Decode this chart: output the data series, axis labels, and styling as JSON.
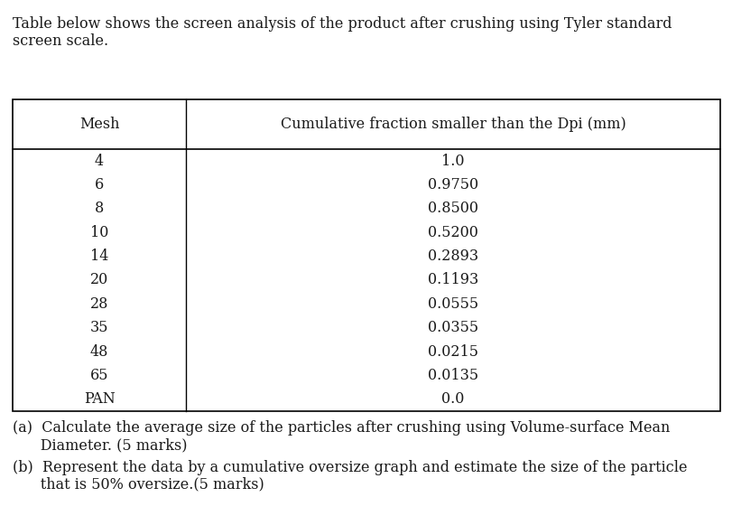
{
  "intro_text_line1": "Table below shows the screen analysis of the product after crushing using Tyler standard",
  "intro_text_line2": "screen scale.",
  "col1_header": "Mesh",
  "col2_header": "Cumulative fraction smaller than the Dpi (mm)",
  "mesh": [
    "4",
    "6",
    "8",
    "10",
    "14",
    "20",
    "28",
    "35",
    "48",
    "65",
    "PAN"
  ],
  "cumulative": [
    "1.0",
    "0.9750",
    "0.8500",
    "0.5200",
    "0.2893",
    "0.1193",
    "0.0555",
    "0.0355",
    "0.0215",
    "0.0135",
    "0.0"
  ],
  "footer_a_part1": "(a)  Calculate the average size of the particles after crushing using Volume-surface Mean",
  "footer_a_part2": "      Diameter. (5 marks)",
  "footer_b_part1": "(b)  Represent the data by a cumulative oversize graph and estimate the size of the particle",
  "footer_b_part2": "      that is 50% oversize.(5 marks)",
  "background_color": "#ffffff",
  "text_color": "#1a1a1a",
  "font_size": 11.5
}
